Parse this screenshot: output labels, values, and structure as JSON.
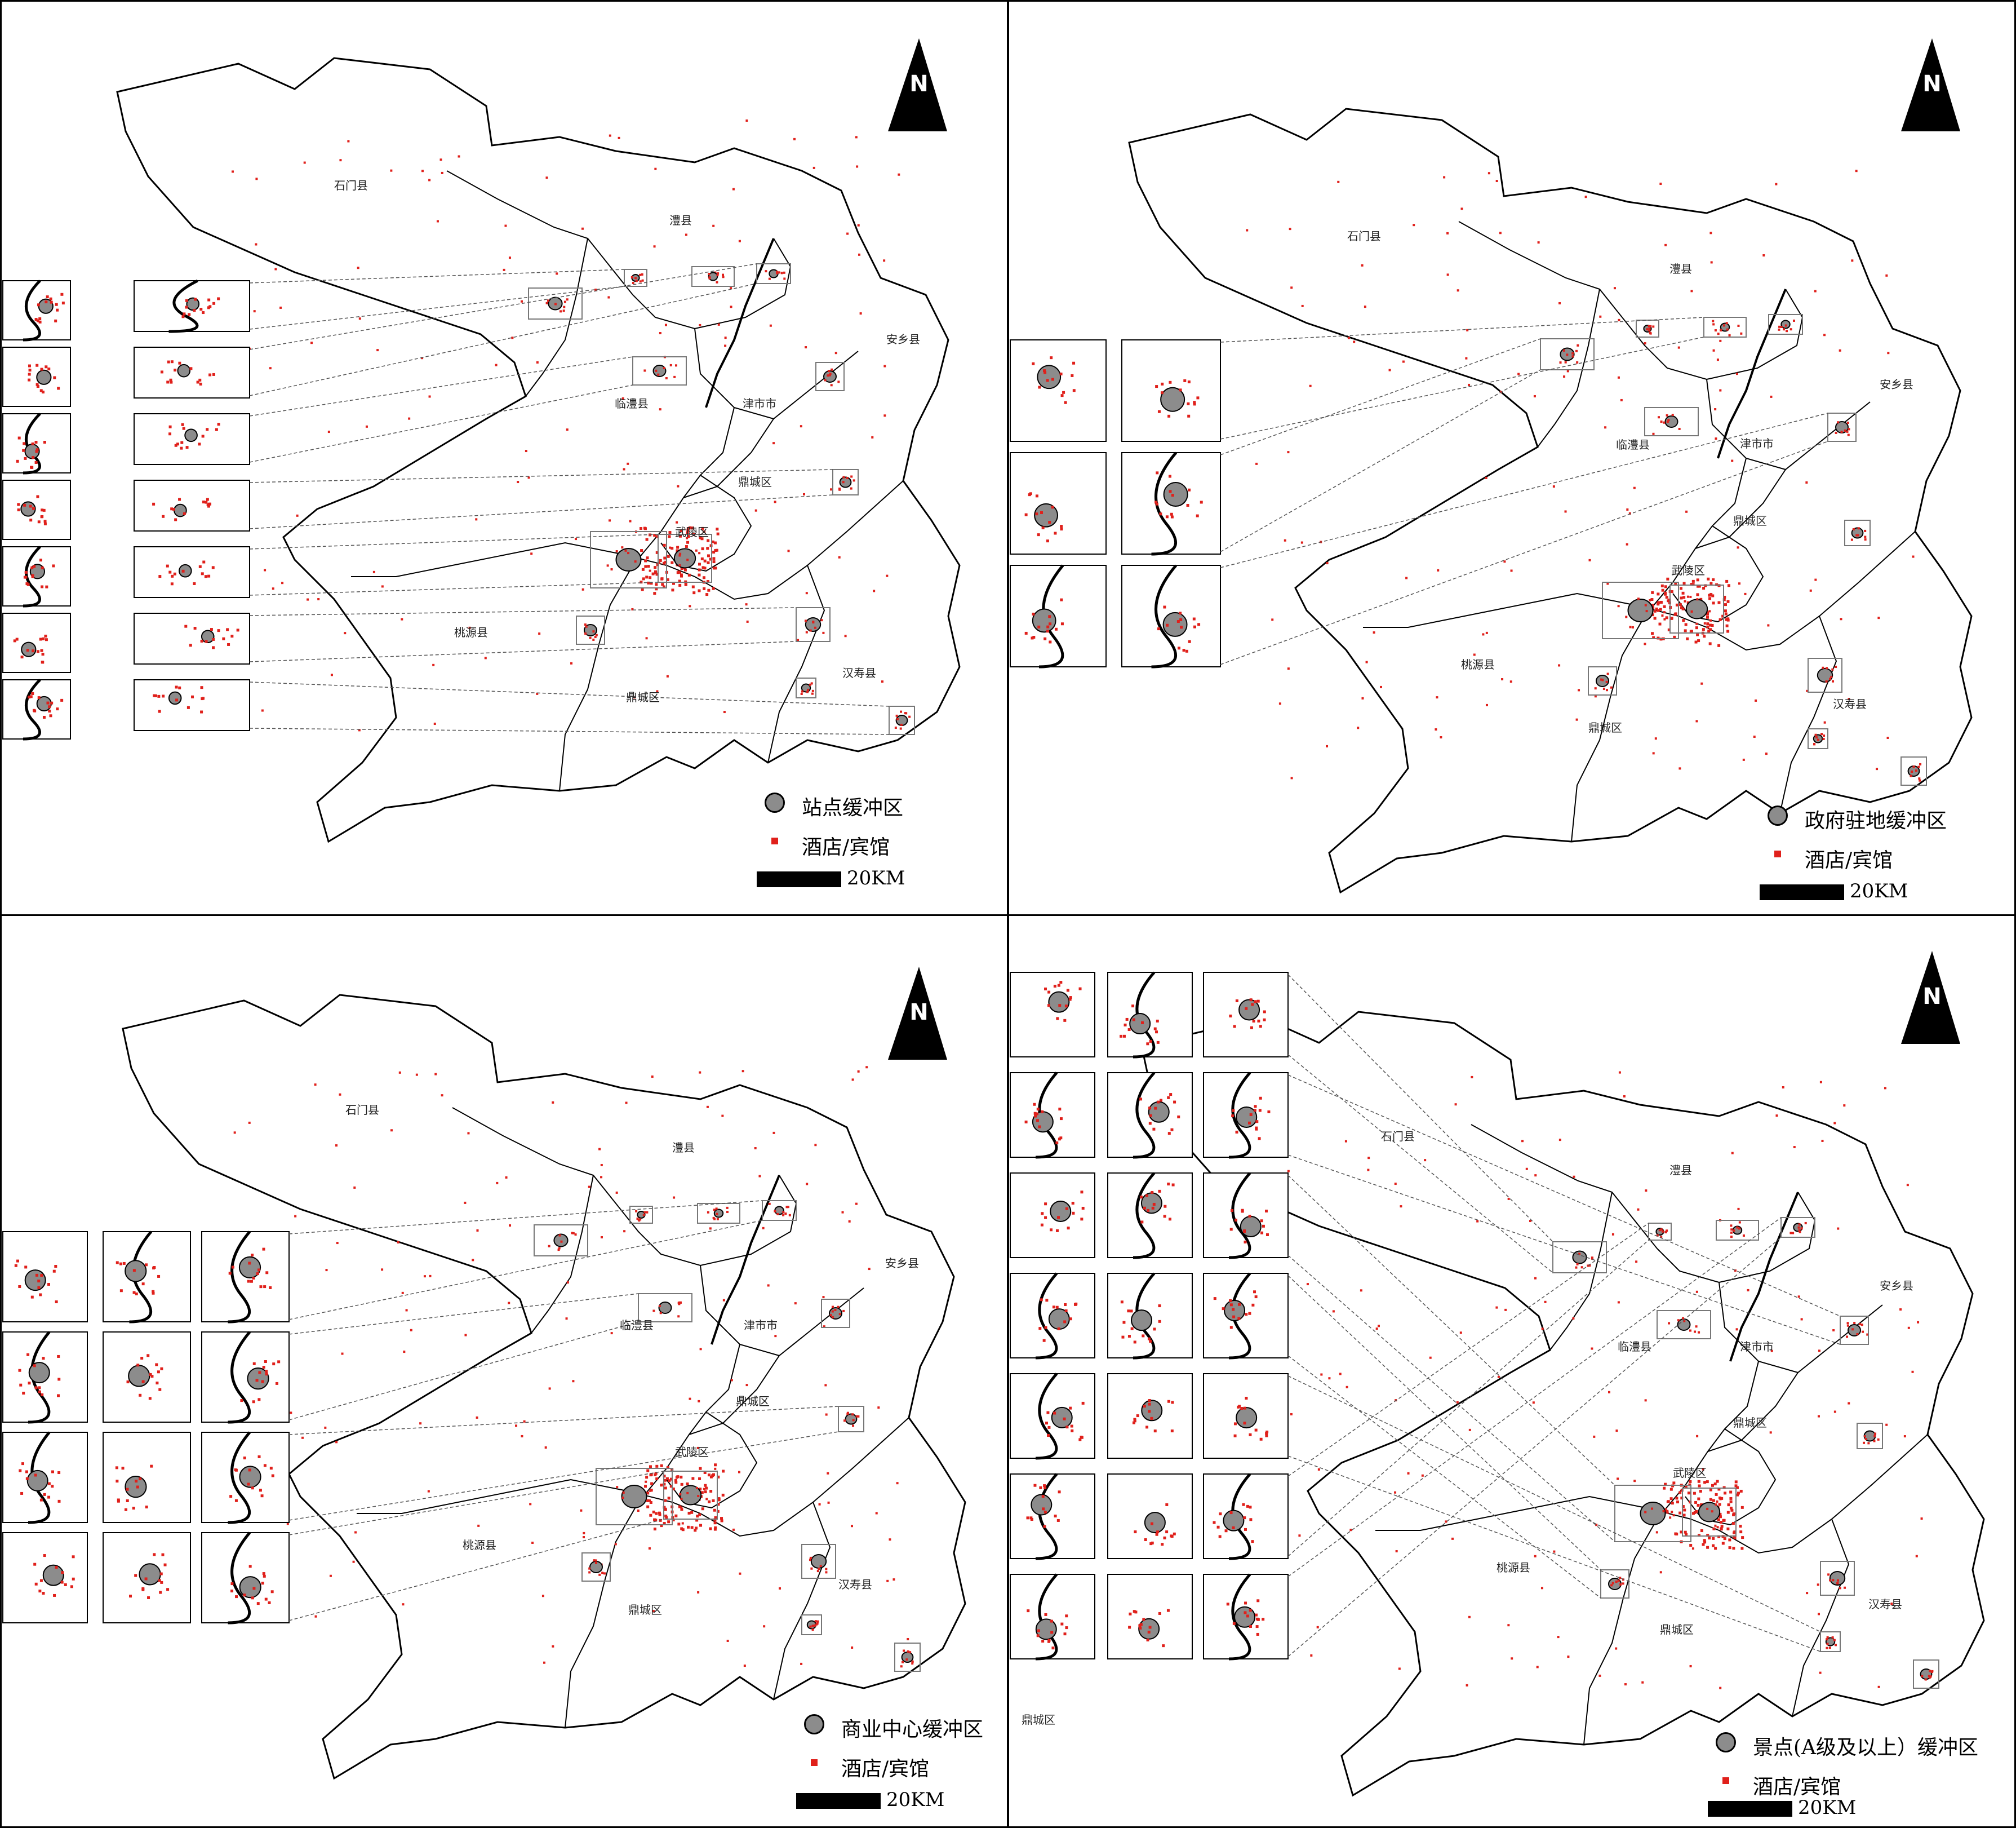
{
  "colors": {
    "buffer_fill": "#8c8c8c",
    "hotel": "#e0201b",
    "boundary": "#000000",
    "leader": "#555555"
  },
  "north_letter": "N",
  "panels": [
    {
      "id": "station",
      "legend_buffer": "站点缓冲区",
      "legend_hotel": "酒店/宾馆",
      "scale": "20KM",
      "labels": {
        "shimen": "石门县",
        "lixian": "澧县",
        "anxiang": "安乡县",
        "linli": "临澧县",
        "jinshi": "津市市",
        "dingcheng1": "鼎城区",
        "wuling": "武陵区",
        "taoyuan": "桃源县",
        "hanshou": "汉寿县",
        "dingcheng2": "鼎城区"
      }
    },
    {
      "id": "government",
      "legend_buffer": "政府驻地缓冲区",
      "legend_hotel": "酒店/宾馆",
      "scale": "20KM",
      "labels": {
        "shimen": "石门县",
        "lixian": "澧县",
        "anxiang": "安乡县",
        "linli": "临澧县",
        "jinshi": "津市市",
        "dingcheng1": "鼎城区",
        "wuling": "武陵区",
        "taoyuan": "桃源县",
        "hanshou": "汉寿县",
        "dingcheng2": "鼎城区"
      }
    },
    {
      "id": "commercial",
      "legend_buffer": "商业中心缓冲区",
      "legend_hotel": "酒店/宾馆",
      "scale": "20KM",
      "labels": {
        "shimen": "石门县",
        "lixian": "澧县",
        "anxiang": "安乡县",
        "linli": "临澧县",
        "jinshi": "津市市",
        "dingcheng1": "鼎城区",
        "wuling": "武陵区",
        "taoyuan": "桃源县",
        "hanshou": "汉寿县",
        "dingcheng2": "鼎城区"
      }
    },
    {
      "id": "scenic",
      "legend_buffer": "景点(A级及以上）缓冲区",
      "legend_hotel": "酒店/宾馆",
      "scale": "20KM",
      "labels": {
        "shimen": "石门县",
        "lixian": "澧县",
        "anxiang": "安乡县",
        "linli": "临澧县",
        "jinshi": "津市市",
        "dingcheng1": "鼎城区",
        "wuling": "武陵区",
        "taoyuan": "桃源县",
        "hanshou": "汉寿县",
        "dingcheng2": "鼎城区",
        "inset_dingcheng": "鼎城区"
      }
    }
  ]
}
